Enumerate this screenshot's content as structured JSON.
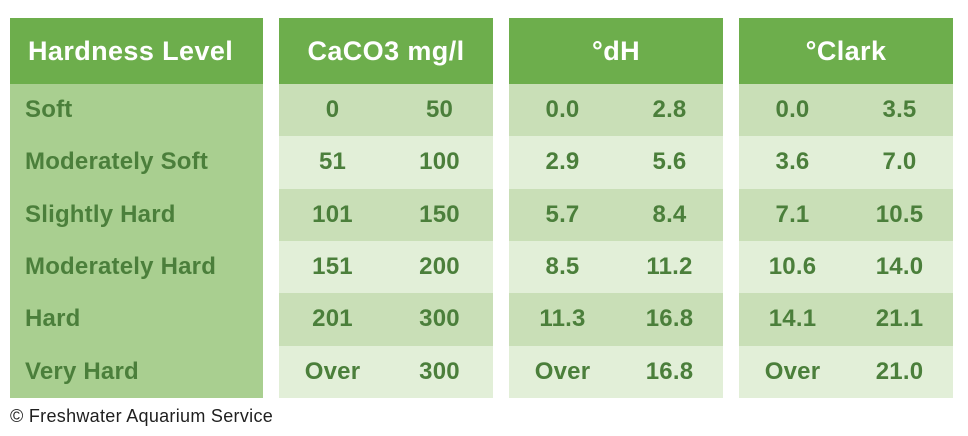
{
  "chart_data": {
    "type": "table",
    "columns": [
      "Hardness Level",
      "CaCO3 mg/l",
      "°dH",
      "°Clark"
    ],
    "rows": [
      [
        "Soft",
        "0",
        "50",
        "0.0",
        "2.8",
        "0.0",
        "3.5"
      ],
      [
        "Moderately Soft",
        "51",
        "100",
        "2.9",
        "5.6",
        "3.6",
        "7.0"
      ],
      [
        "Slightly Hard",
        "101",
        "150",
        "5.7",
        "8.4",
        "7.1",
        "10.5"
      ],
      [
        "Moderately Hard",
        "151",
        "200",
        "8.5",
        "11.2",
        "10.6",
        "14.0"
      ],
      [
        "Hard",
        "201",
        "300",
        "11.3",
        "16.8",
        "14.1",
        "21.1"
      ],
      [
        "Very Hard",
        "Over",
        "300",
        "Over",
        "16.8",
        "Over",
        "21.0"
      ]
    ]
  },
  "table": {
    "columns": [
      {
        "id": "level",
        "header": "Hardness Level"
      },
      {
        "id": "caco3",
        "header": "CaCO3 mg/l"
      },
      {
        "id": "dh",
        "header": "°dH"
      },
      {
        "id": "clark",
        "header": "°Clark"
      }
    ],
    "rows": [
      {
        "level": "Soft",
        "caco3": [
          "0",
          "50"
        ],
        "dh": [
          "0.0",
          "2.8"
        ],
        "clark": [
          "0.0",
          "3.5"
        ]
      },
      {
        "level": "Moderately Soft",
        "caco3": [
          "51",
          "100"
        ],
        "dh": [
          "2.9",
          "5.6"
        ],
        "clark": [
          "3.6",
          "7.0"
        ]
      },
      {
        "level": "Slightly Hard",
        "caco3": [
          "101",
          "150"
        ],
        "dh": [
          "5.7",
          "8.4"
        ],
        "clark": [
          "7.1",
          "10.5"
        ]
      },
      {
        "level": "Moderately Hard",
        "caco3": [
          "151",
          "200"
        ],
        "dh": [
          "8.5",
          "11.2"
        ],
        "clark": [
          "10.6",
          "14.0"
        ]
      },
      {
        "level": "Hard",
        "caco3": [
          "201",
          "300"
        ],
        "dh": [
          "11.3",
          "16.8"
        ],
        "clark": [
          "14.1",
          "21.1"
        ]
      },
      {
        "level": "Very Hard",
        "caco3": [
          "Over",
          "300"
        ],
        "dh": [
          "Over",
          "16.8"
        ],
        "clark": [
          "Over",
          "21.0"
        ]
      }
    ]
  },
  "footer": {
    "credit": "© Freshwater Aquarium Service"
  },
  "colors": {
    "header_bg": "#6dae4c",
    "header_text": "#ffffff",
    "level_column_bg": "#a9cf90",
    "row_stripe_a": "#c9dfb7",
    "row_stripe_b": "#e2efd8",
    "cell_text": "#4b7f3b",
    "credit_text": "#1f1f1f",
    "page_bg": "#ffffff"
  }
}
